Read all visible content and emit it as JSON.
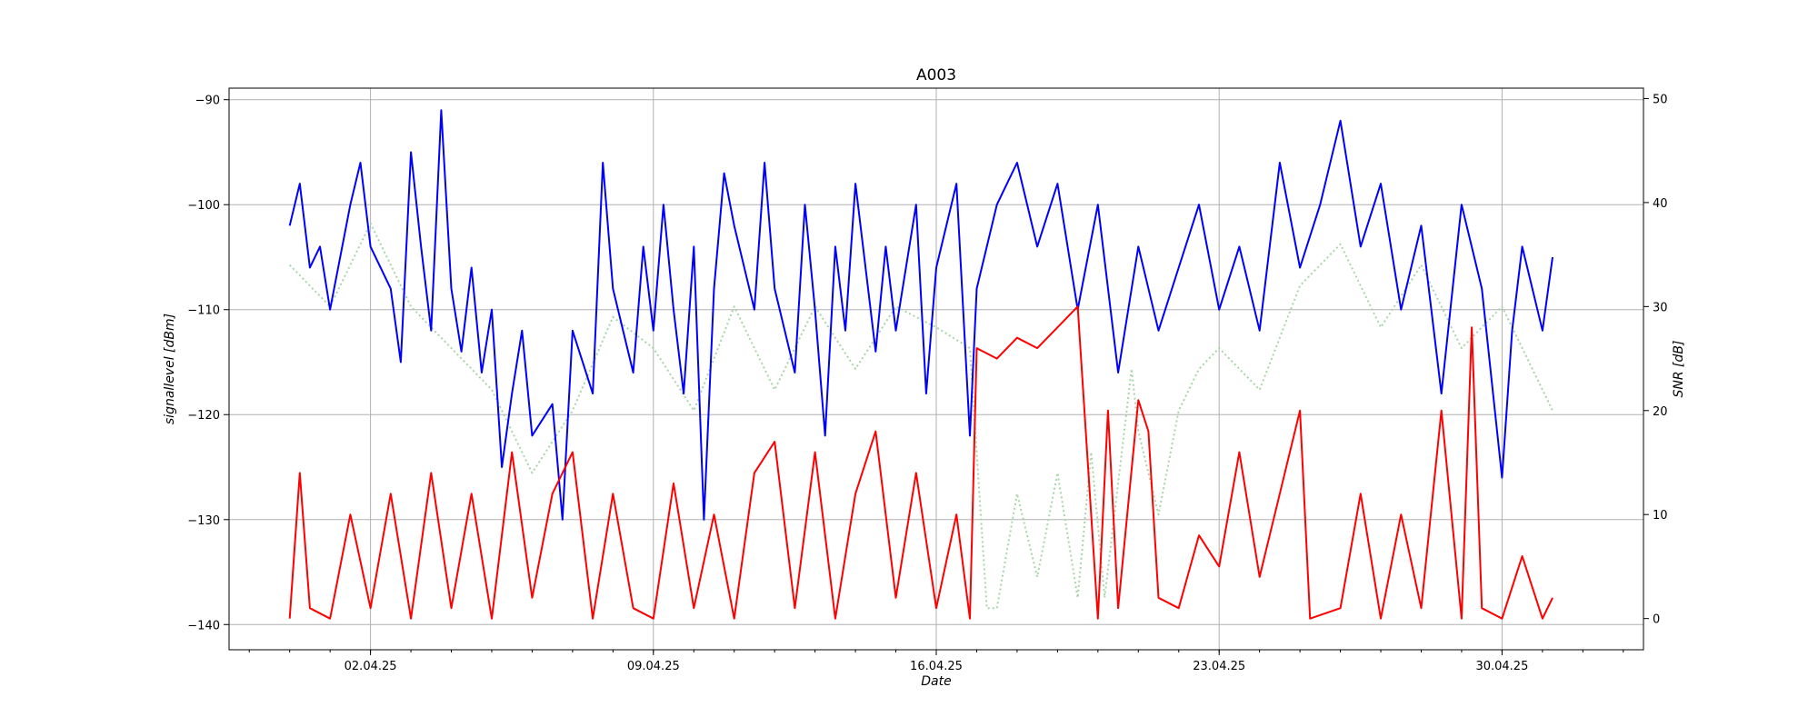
{
  "chart_data": {
    "type": "line",
    "title": "A003",
    "xlabel": "Date",
    "ylabel_left": "signallevel [dBm]",
    "ylabel_right": "SNR [dB]",
    "x_range": [
      "2025-03-29T12:00",
      "2025-05-03T12:00"
    ],
    "x_ticks": [
      {
        "date": "2025-04-02",
        "label": "02.04.25"
      },
      {
        "date": "2025-04-09",
        "label": "09.04.25"
      },
      {
        "date": "2025-04-16",
        "label": "16.04.25"
      },
      {
        "date": "2025-04-23",
        "label": "23.04.25"
      },
      {
        "date": "2025-04-30",
        "label": "30.04.25"
      }
    ],
    "ylim_left": [
      -142.4,
      -88.9
    ],
    "ylim_right": [
      -3.0,
      51.0
    ],
    "left_ticks": [
      -140,
      -130,
      -120,
      -110,
      -100,
      -90
    ],
    "right_ticks": [
      0,
      10,
      20,
      30,
      40,
      50
    ],
    "grid": true,
    "legend": "none",
    "series": [
      {
        "axis": "right",
        "style": "dotted",
        "color": "#a8d5a8",
        "points": [
          [
            "2025-03-31T00:00",
            34
          ],
          [
            "2025-04-01T00:00",
            30
          ],
          [
            "2025-04-02T00:00",
            38
          ],
          [
            "2025-04-03T00:00",
            30
          ],
          [
            "2025-04-04T00:00",
            26
          ],
          [
            "2025-04-05T00:00",
            22
          ],
          [
            "2025-04-06T00:00",
            14
          ],
          [
            "2025-04-07T00:00",
            20
          ],
          [
            "2025-04-08T00:00",
            29
          ],
          [
            "2025-04-09T00:00",
            26
          ],
          [
            "2025-04-10T00:00",
            20
          ],
          [
            "2025-04-11T00:00",
            30
          ],
          [
            "2025-04-12T00:00",
            22
          ],
          [
            "2025-04-13T00:00",
            30
          ],
          [
            "2025-04-14T00:00",
            24
          ],
          [
            "2025-04-15T00:00",
            30
          ],
          [
            "2025-04-16T00:00",
            28
          ],
          [
            "2025-04-16T20:00",
            26
          ],
          [
            "2025-04-17T06:00",
            1
          ],
          [
            "2025-04-17T12:00",
            1
          ],
          [
            "2025-04-18T00:00",
            12
          ],
          [
            "2025-04-18T12:00",
            4
          ],
          [
            "2025-04-19T00:00",
            14
          ],
          [
            "2025-04-19T12:00",
            2
          ],
          [
            "2025-04-19T20:00",
            16
          ],
          [
            "2025-04-20T04:00",
            2
          ],
          [
            "2025-04-20T20:00",
            24
          ],
          [
            "2025-04-21T00:00",
            18
          ],
          [
            "2025-04-21T12:00",
            10
          ],
          [
            "2025-04-22T00:00",
            20
          ],
          [
            "2025-04-22T12:00",
            24
          ],
          [
            "2025-04-23T00:00",
            26
          ],
          [
            "2025-04-24T00:00",
            22
          ],
          [
            "2025-04-25T00:00",
            32
          ],
          [
            "2025-04-26T00:00",
            36
          ],
          [
            "2025-04-27T00:00",
            28
          ],
          [
            "2025-04-28T00:00",
            34
          ],
          [
            "2025-04-29T00:00",
            26
          ],
          [
            "2025-04-30T00:00",
            30
          ],
          [
            "2025-05-01T06:00",
            20
          ]
        ]
      },
      {
        "axis": "left",
        "style": "solid",
        "color": "#0000ff",
        "points": [
          [
            "2025-03-31T00:00",
            -102
          ],
          [
            "2025-03-31T06:00",
            -98
          ],
          [
            "2025-03-31T12:00",
            -106
          ],
          [
            "2025-03-31T18:00",
            -104
          ],
          [
            "2025-04-01T00:00",
            -110
          ],
          [
            "2025-04-01T12:00",
            -100
          ],
          [
            "2025-04-01T18:00",
            -96
          ],
          [
            "2025-04-02T00:00",
            -104
          ],
          [
            "2025-04-02T12:00",
            -108
          ],
          [
            "2025-04-02T18:00",
            -115
          ],
          [
            "2025-04-03T00:00",
            -95
          ],
          [
            "2025-04-03T06:00",
            -104
          ],
          [
            "2025-04-03T12:00",
            -112
          ],
          [
            "2025-04-03T18:00",
            -91
          ],
          [
            "2025-04-04T00:00",
            -108
          ],
          [
            "2025-04-04T06:00",
            -114
          ],
          [
            "2025-04-04T12:00",
            -106
          ],
          [
            "2025-04-04T18:00",
            -116
          ],
          [
            "2025-04-05T00:00",
            -110
          ],
          [
            "2025-04-05T06:00",
            -125
          ],
          [
            "2025-04-05T12:00",
            -118
          ],
          [
            "2025-04-05T18:00",
            -112
          ],
          [
            "2025-04-06T00:00",
            -122
          ],
          [
            "2025-04-06T12:00",
            -119
          ],
          [
            "2025-04-06T18:00",
            -130
          ],
          [
            "2025-04-07T00:00",
            -112
          ],
          [
            "2025-04-07T12:00",
            -118
          ],
          [
            "2025-04-07T18:00",
            -96
          ],
          [
            "2025-04-08T00:00",
            -108
          ],
          [
            "2025-04-08T12:00",
            -116
          ],
          [
            "2025-04-08T18:00",
            -104
          ],
          [
            "2025-04-09T00:00",
            -112
          ],
          [
            "2025-04-09T06:00",
            -100
          ],
          [
            "2025-04-09T12:00",
            -110
          ],
          [
            "2025-04-09T18:00",
            -118
          ],
          [
            "2025-04-10T00:00",
            -104
          ],
          [
            "2025-04-10T06:00",
            -130
          ],
          [
            "2025-04-10T12:00",
            -108
          ],
          [
            "2025-04-10T18:00",
            -97
          ],
          [
            "2025-04-11T00:00",
            -102
          ],
          [
            "2025-04-11T12:00",
            -110
          ],
          [
            "2025-04-11T18:00",
            -96
          ],
          [
            "2025-04-12T00:00",
            -108
          ],
          [
            "2025-04-12T12:00",
            -116
          ],
          [
            "2025-04-12T18:00",
            -100
          ],
          [
            "2025-04-13T00:00",
            -110
          ],
          [
            "2025-04-13T06:00",
            -122
          ],
          [
            "2025-04-13T12:00",
            -104
          ],
          [
            "2025-04-13T18:00",
            -112
          ],
          [
            "2025-04-14T00:00",
            -98
          ],
          [
            "2025-04-14T12:00",
            -114
          ],
          [
            "2025-04-14T18:00",
            -104
          ],
          [
            "2025-04-15T00:00",
            -112
          ],
          [
            "2025-04-15T12:00",
            -100
          ],
          [
            "2025-04-15T18:00",
            -118
          ],
          [
            "2025-04-16T00:00",
            -106
          ],
          [
            "2025-04-16T12:00",
            -98
          ],
          [
            "2025-04-16T20:00",
            -122
          ],
          [
            "2025-04-17T00:00",
            -108
          ],
          [
            "2025-04-17T12:00",
            -100
          ],
          [
            "2025-04-18T00:00",
            -96
          ],
          [
            "2025-04-18T12:00",
            -104
          ],
          [
            "2025-04-19T00:00",
            -98
          ],
          [
            "2025-04-19T12:00",
            -110
          ],
          [
            "2025-04-20T00:00",
            -100
          ],
          [
            "2025-04-20T12:00",
            -116
          ],
          [
            "2025-04-21T00:00",
            -104
          ],
          [
            "2025-04-21T12:00",
            -112
          ],
          [
            "2025-04-22T00:00",
            -106
          ],
          [
            "2025-04-22T12:00",
            -100
          ],
          [
            "2025-04-23T00:00",
            -110
          ],
          [
            "2025-04-23T12:00",
            -104
          ],
          [
            "2025-04-24T00:00",
            -112
          ],
          [
            "2025-04-24T12:00",
            -96
          ],
          [
            "2025-04-25T00:00",
            -106
          ],
          [
            "2025-04-25T12:00",
            -100
          ],
          [
            "2025-04-26T00:00",
            -92
          ],
          [
            "2025-04-26T12:00",
            -104
          ],
          [
            "2025-04-27T00:00",
            -98
          ],
          [
            "2025-04-27T12:00",
            -110
          ],
          [
            "2025-04-28T00:00",
            -102
          ],
          [
            "2025-04-28T12:00",
            -118
          ],
          [
            "2025-04-29T00:00",
            -100
          ],
          [
            "2025-04-29T12:00",
            -108
          ],
          [
            "2025-04-30T00:00",
            -126
          ],
          [
            "2025-04-30T06:00",
            -112
          ],
          [
            "2025-04-30T12:00",
            -104
          ],
          [
            "2025-05-01T00:00",
            -112
          ],
          [
            "2025-05-01T06:00",
            -105
          ]
        ]
      },
      {
        "axis": "right",
        "style": "solid",
        "color": "#ff0000",
        "points": [
          [
            "2025-03-31T00:00",
            0
          ],
          [
            "2025-03-31T06:00",
            14
          ],
          [
            "2025-03-31T12:00",
            1
          ],
          [
            "2025-04-01T00:00",
            0
          ],
          [
            "2025-04-01T12:00",
            10
          ],
          [
            "2025-04-02T00:00",
            1
          ],
          [
            "2025-04-02T12:00",
            12
          ],
          [
            "2025-04-03T00:00",
            0
          ],
          [
            "2025-04-03T12:00",
            14
          ],
          [
            "2025-04-04T00:00",
            1
          ],
          [
            "2025-04-04T12:00",
            12
          ],
          [
            "2025-04-05T00:00",
            0
          ],
          [
            "2025-04-05T12:00",
            16
          ],
          [
            "2025-04-06T00:00",
            2
          ],
          [
            "2025-04-06T12:00",
            12
          ],
          [
            "2025-04-07T00:00",
            16
          ],
          [
            "2025-04-07T12:00",
            0
          ],
          [
            "2025-04-08T00:00",
            12
          ],
          [
            "2025-04-08T12:00",
            1
          ],
          [
            "2025-04-09T00:00",
            0
          ],
          [
            "2025-04-09T12:00",
            13
          ],
          [
            "2025-04-10T00:00",
            1
          ],
          [
            "2025-04-10T12:00",
            10
          ],
          [
            "2025-04-11T00:00",
            0
          ],
          [
            "2025-04-11T12:00",
            14
          ],
          [
            "2025-04-12T00:00",
            17
          ],
          [
            "2025-04-12T12:00",
            1
          ],
          [
            "2025-04-13T00:00",
            16
          ],
          [
            "2025-04-13T12:00",
            0
          ],
          [
            "2025-04-14T00:00",
            12
          ],
          [
            "2025-04-14T12:00",
            18
          ],
          [
            "2025-04-15T00:00",
            2
          ],
          [
            "2025-04-15T12:00",
            14
          ],
          [
            "2025-04-16T00:00",
            1
          ],
          [
            "2025-04-16T12:00",
            10
          ],
          [
            "2025-04-16T20:00",
            0
          ],
          [
            "2025-04-17T00:00",
            26
          ],
          [
            "2025-04-17T12:00",
            25
          ],
          [
            "2025-04-18T00:00",
            27
          ],
          [
            "2025-04-18T12:00",
            26
          ],
          [
            "2025-04-19T00:00",
            28
          ],
          [
            "2025-04-19T12:00",
            30
          ],
          [
            "2025-04-20T00:00",
            0
          ],
          [
            "2025-04-20T06:00",
            20
          ],
          [
            "2025-04-20T12:00",
            1
          ],
          [
            "2025-04-21T00:00",
            21
          ],
          [
            "2025-04-21T06:00",
            18
          ],
          [
            "2025-04-21T12:00",
            2
          ],
          [
            "2025-04-22T00:00",
            1
          ],
          [
            "2025-04-22T12:00",
            8
          ],
          [
            "2025-04-23T00:00",
            5
          ],
          [
            "2025-04-23T12:00",
            16
          ],
          [
            "2025-04-24T00:00",
            4
          ],
          [
            "2025-04-24T12:00",
            12
          ],
          [
            "2025-04-25T00:00",
            20
          ],
          [
            "2025-04-25T06:00",
            0
          ],
          [
            "2025-04-26T00:00",
            1
          ],
          [
            "2025-04-26T12:00",
            12
          ],
          [
            "2025-04-27T00:00",
            0
          ],
          [
            "2025-04-27T12:00",
            10
          ],
          [
            "2025-04-28T00:00",
            1
          ],
          [
            "2025-04-28T12:00",
            20
          ],
          [
            "2025-04-29T00:00",
            0
          ],
          [
            "2025-04-29T06:00",
            28
          ],
          [
            "2025-04-29T12:00",
            1
          ],
          [
            "2025-04-30T00:00",
            0
          ],
          [
            "2025-04-30T12:00",
            6
          ],
          [
            "2025-05-01T00:00",
            0
          ],
          [
            "2025-05-01T06:00",
            2
          ]
        ]
      }
    ]
  }
}
